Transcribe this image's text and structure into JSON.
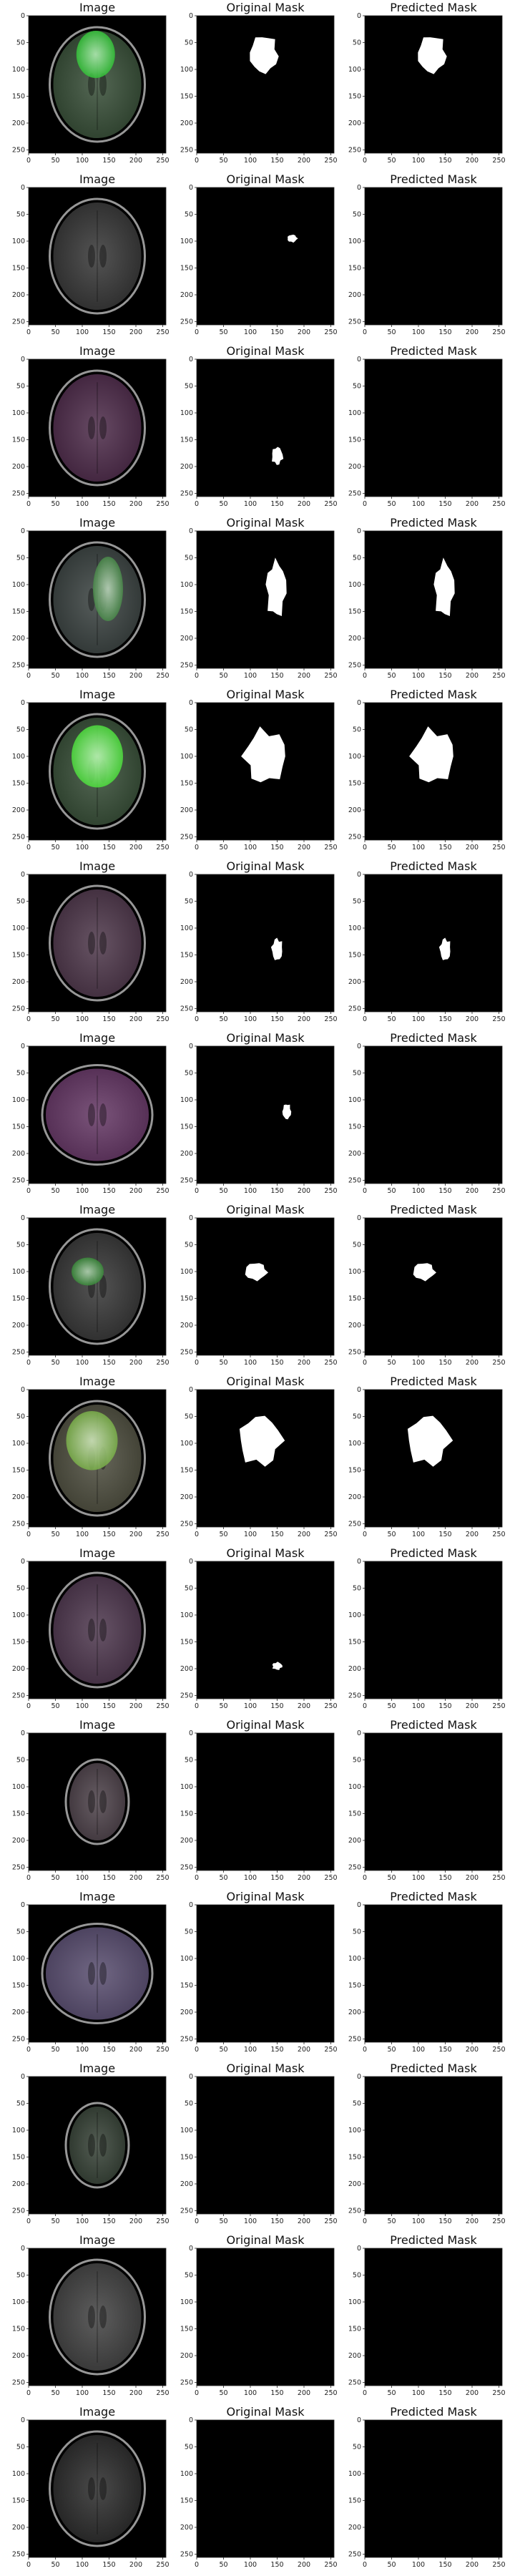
{
  "columns": [
    "Image",
    "Original Mask",
    "Predicted Mask"
  ],
  "x_ticks": [
    "0",
    "50",
    "100",
    "150",
    "200",
    "250"
  ],
  "y_ticks": [
    "0",
    "50",
    "100",
    "150",
    "200",
    "250"
  ],
  "mask_color": "#ffffff",
  "background_color": "#000000",
  "rows": [
    {
      "scan": {
        "tint": "#3a5a3a",
        "highlight": "#35c33a",
        "shape": "oval"
      },
      "original_mask": true,
      "predicted_mask": true
    },
    {
      "scan": {
        "tint": "#3a3a3a",
        "highlight": null,
        "shape": "oval"
      },
      "original_mask": true,
      "predicted_mask": false
    },
    {
      "scan": {
        "tint": "#5a2a55",
        "highlight": null,
        "shape": "oval"
      },
      "original_mask": true,
      "predicted_mask": false
    },
    {
      "scan": {
        "tint": "#3f4a48",
        "highlight": "#4a8a4a",
        "shape": "oval"
      },
      "original_mask": true,
      "predicted_mask": true
    },
    {
      "scan": {
        "tint": "#3a5a3a",
        "highlight": "#4dde3d",
        "shape": "oval"
      },
      "original_mask": true,
      "predicted_mask": true
    },
    {
      "scan": {
        "tint": "#5a3a55",
        "highlight": null,
        "shape": "oval"
      },
      "original_mask": true,
      "predicted_mask": true
    },
    {
      "scan": {
        "tint": "#7a3a7a",
        "highlight": null,
        "shape": "skull"
      },
      "original_mask": true,
      "predicted_mask": false
    },
    {
      "scan": {
        "tint": "#3a3a3a",
        "highlight": "#3a8a3a",
        "shape": "oval"
      },
      "original_mask": true,
      "predicted_mask": true
    },
    {
      "scan": {
        "tint": "#5a5a45",
        "highlight": "#7ab04a",
        "shape": "oval"
      },
      "original_mask": true,
      "predicted_mask": true
    },
    {
      "scan": {
        "tint": "#5a3a5a",
        "highlight": null,
        "shape": "oval"
      },
      "original_mask": true,
      "predicted_mask": false
    },
    {
      "scan": {
        "tint": "#5a4a55",
        "highlight": null,
        "shape": "small"
      },
      "original_mask": false,
      "predicted_mask": false
    },
    {
      "scan": {
        "tint": "#6a5a8a",
        "highlight": null,
        "shape": "skull"
      },
      "original_mask": false,
      "predicted_mask": false
    },
    {
      "scan": {
        "tint": "#3a4a3a",
        "highlight": null,
        "shape": "small"
      },
      "original_mask": false,
      "predicted_mask": false
    },
    {
      "scan": {
        "tint": "#4a4a4a",
        "highlight": null,
        "shape": "oval"
      },
      "original_mask": false,
      "predicted_mask": false
    },
    {
      "scan": {
        "tint": "#2a2a2a",
        "highlight": null,
        "shape": "oval"
      },
      "original_mask": false,
      "predicted_mask": false
    }
  ]
}
